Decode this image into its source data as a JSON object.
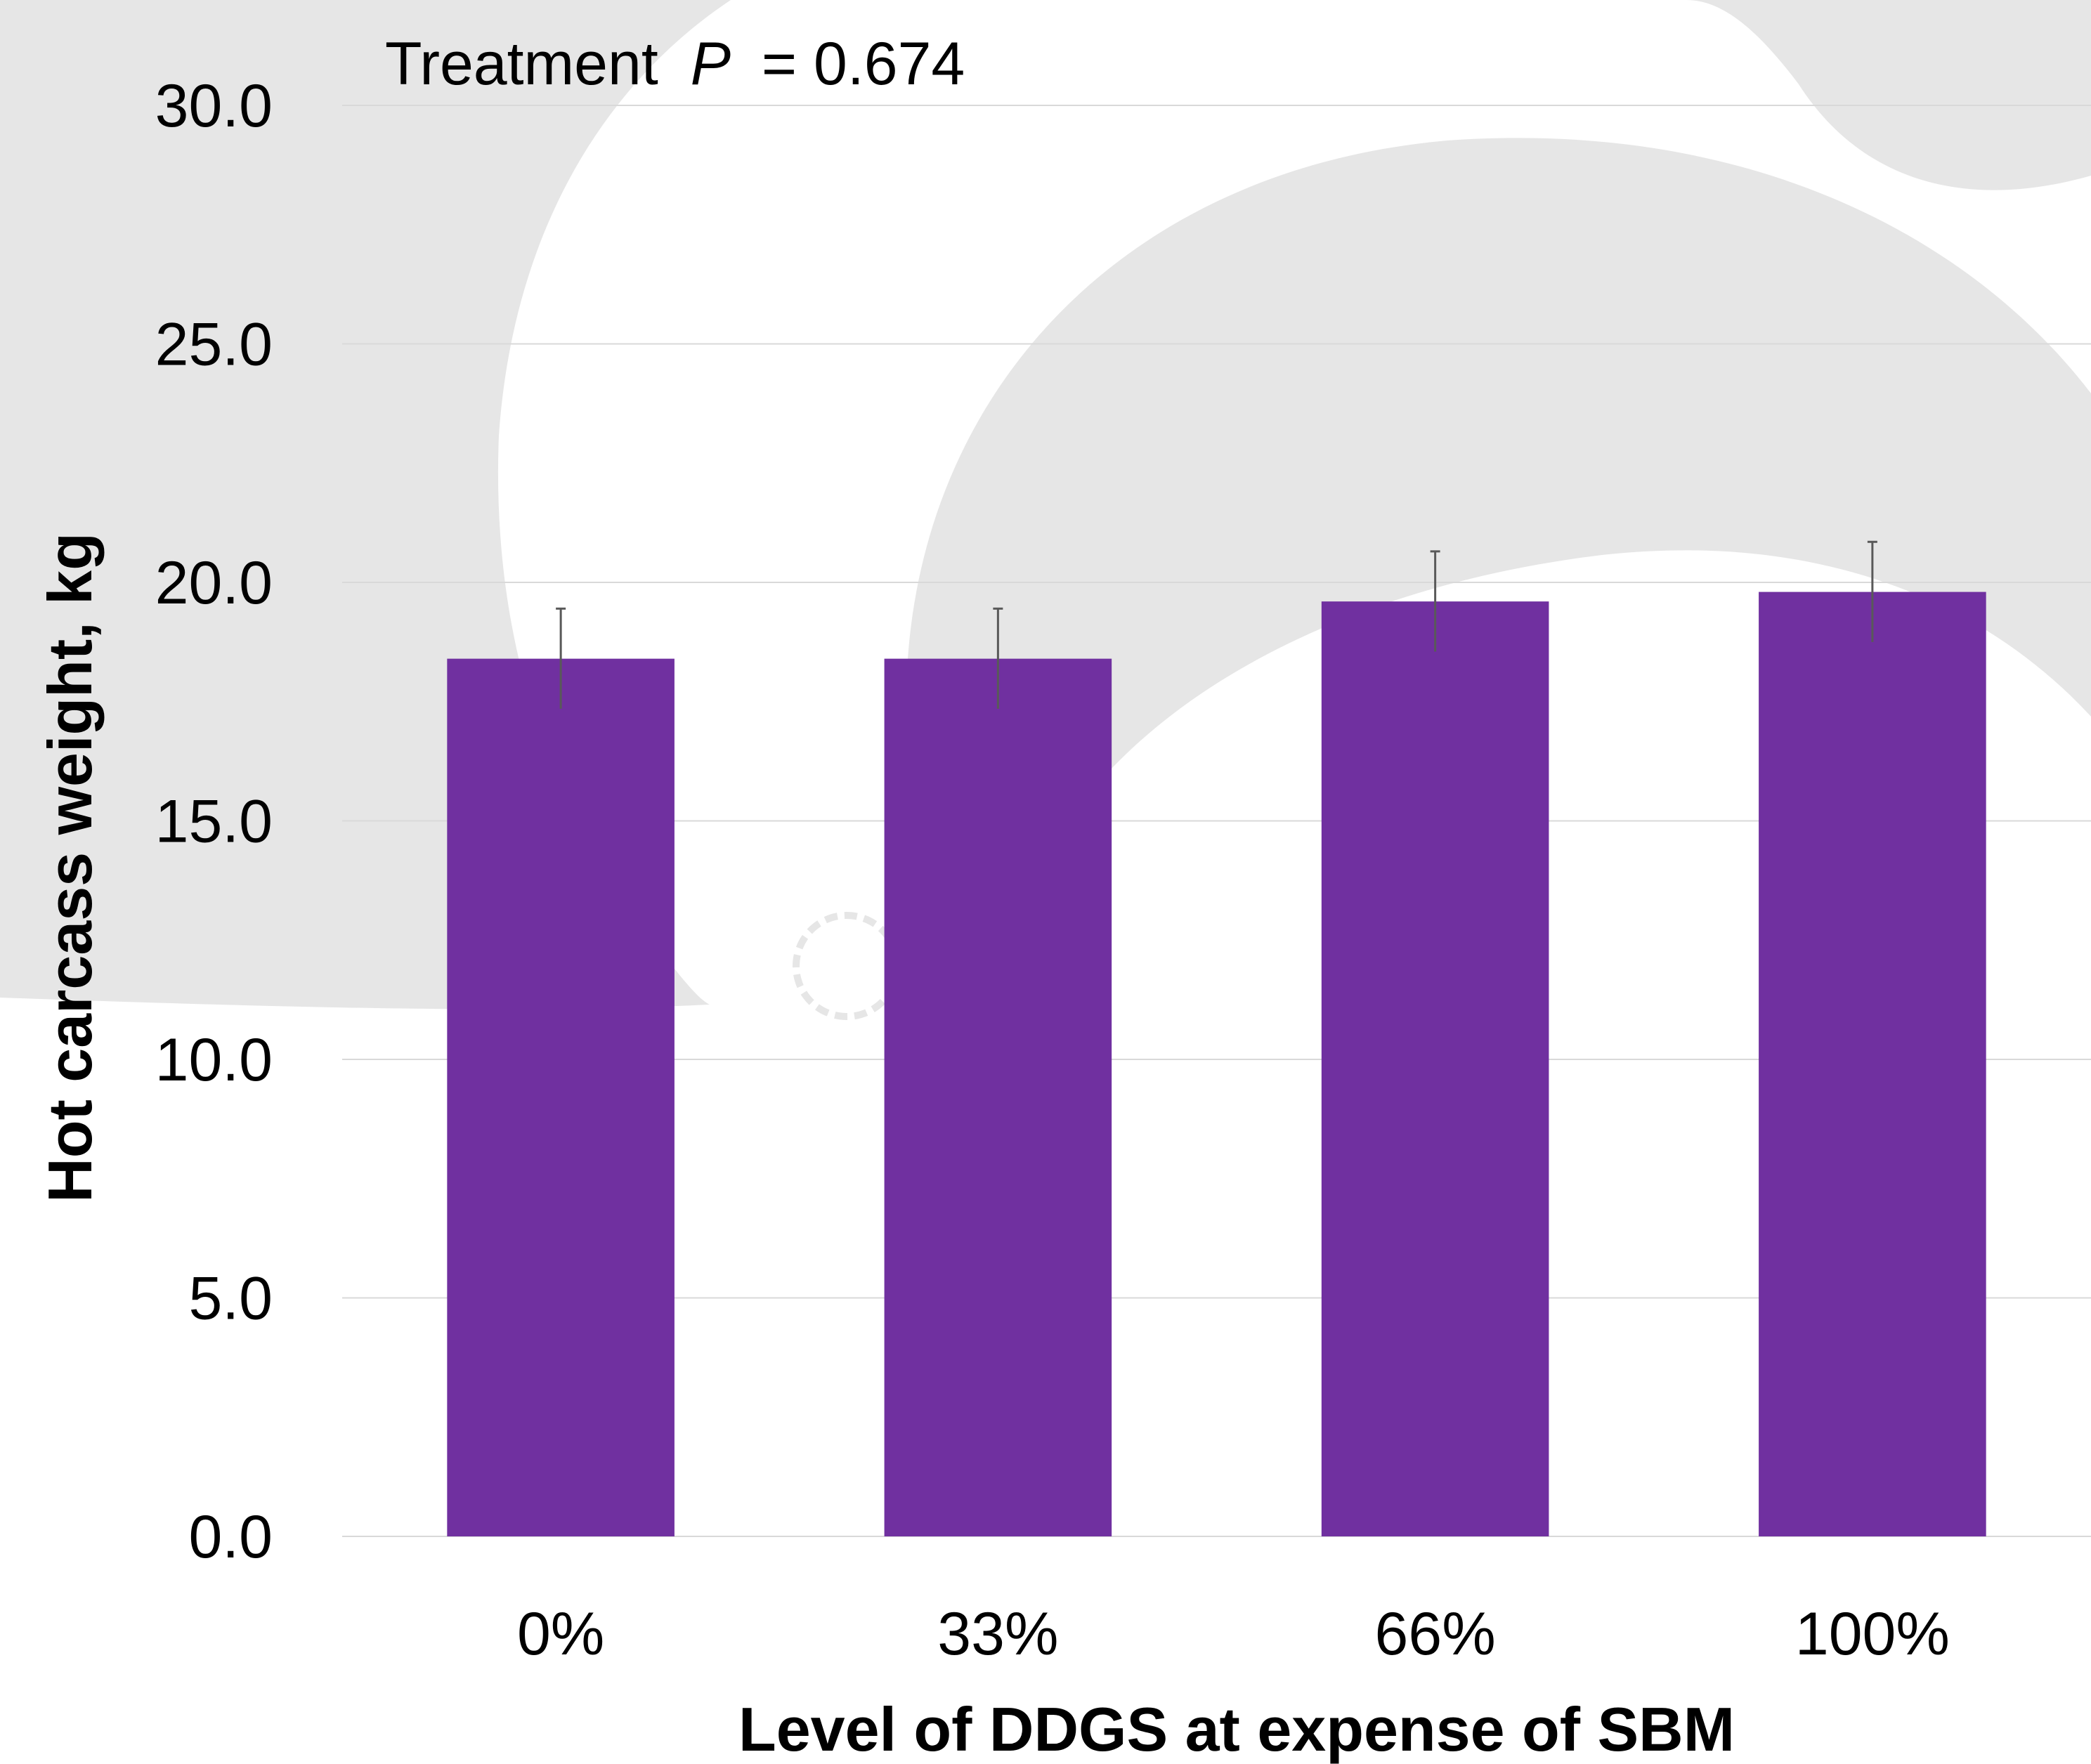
{
  "chart_data": {
    "type": "bar",
    "annotation": {
      "label": "Treatment",
      "stat": "P",
      "value": "= 0.674"
    },
    "xlabel": "Level of DDGS at expense of SBM",
    "ylabel": "Hot carcass weight, kg",
    "categories": [
      "0%",
      "33%",
      "66%",
      "100%"
    ],
    "values": [
      18.4,
      18.4,
      19.6,
      19.8
    ],
    "errors": [
      1.05,
      1.05,
      1.05,
      1.05
    ],
    "ylim": [
      0,
      30
    ],
    "yticks": [
      "0.0",
      "5.0",
      "10.0",
      "15.0",
      "20.0",
      "25.0",
      "30.0"
    ],
    "grid": true,
    "colors": {
      "bar": "#7030A0",
      "grid": "#D9D9D9",
      "error": "#595959",
      "watermark": "#E6E6E6"
    }
  }
}
